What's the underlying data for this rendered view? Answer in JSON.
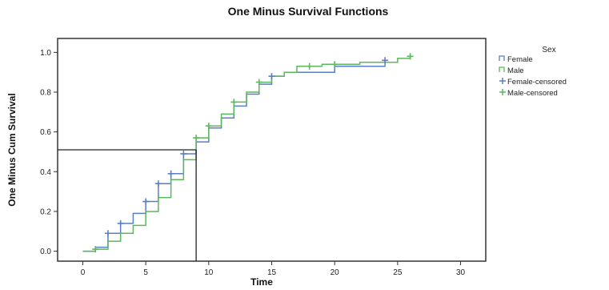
{
  "colors": {
    "female": "#5b7fc7",
    "male": "#5cb85c",
    "frame": "#333333",
    "reference": "#222222"
  },
  "chart_data": {
    "type": "line",
    "title": "One Minus Survival Functions",
    "xlabel": "Time",
    "ylabel": "One Minus Cum Survival",
    "xlim": [
      -2,
      32
    ],
    "ylim": [
      -0.05,
      1.07
    ],
    "xticks": [
      0,
      5,
      10,
      15,
      20,
      25,
      30
    ],
    "yticks": [
      0.0,
      0.2,
      0.4,
      0.6,
      0.8,
      1.0
    ],
    "xtick_labels": [
      "0",
      "5",
      "10",
      "15",
      "20",
      "25",
      "30"
    ],
    "ytick_labels": [
      "0.0",
      "0.2",
      "0.4",
      "0.6",
      "0.8",
      "1.0"
    ],
    "grid": false,
    "legend": {
      "title": "Sex",
      "position": "right",
      "entries": [
        "Female",
        "Male",
        "Female-censored",
        "Male-censored"
      ]
    },
    "reference_lines": {
      "horizontal_y": 0.51,
      "vertical_x": 9.0
    },
    "series": [
      {
        "name": "Female",
        "step": true,
        "x": [
          0,
          1,
          2,
          3,
          4,
          5,
          6,
          7,
          8,
          9,
          10,
          11,
          12,
          13,
          14,
          15,
          16,
          20,
          24
        ],
        "y": [
          0.0,
          0.02,
          0.09,
          0.14,
          0.19,
          0.25,
          0.34,
          0.39,
          0.49,
          0.55,
          0.62,
          0.67,
          0.73,
          0.79,
          0.84,
          0.88,
          0.9,
          0.93,
          0.96
        ]
      },
      {
        "name": "Male",
        "step": true,
        "x": [
          0,
          1,
          2,
          3,
          4,
          5,
          6,
          7,
          8,
          9,
          10,
          11,
          12,
          13,
          14,
          15,
          16,
          17,
          19,
          22,
          25,
          26
        ],
        "y": [
          0.0,
          0.01,
          0.05,
          0.09,
          0.13,
          0.2,
          0.27,
          0.36,
          0.46,
          0.57,
          0.63,
          0.69,
          0.75,
          0.8,
          0.85,
          0.88,
          0.9,
          0.93,
          0.94,
          0.95,
          0.97,
          0.98
        ]
      },
      {
        "name": "Female-censored",
        "marker": "+",
        "x": [
          2,
          3,
          5,
          6,
          7,
          8,
          15,
          24
        ],
        "y": [
          0.09,
          0.14,
          0.25,
          0.34,
          0.39,
          0.49,
          0.88,
          0.96
        ]
      },
      {
        "name": "Male-censored",
        "marker": "+",
        "x": [
          1,
          9,
          10,
          12,
          14,
          18,
          20,
          26
        ],
        "y": [
          0.01,
          0.57,
          0.63,
          0.75,
          0.85,
          0.93,
          0.94,
          0.98
        ]
      }
    ]
  }
}
